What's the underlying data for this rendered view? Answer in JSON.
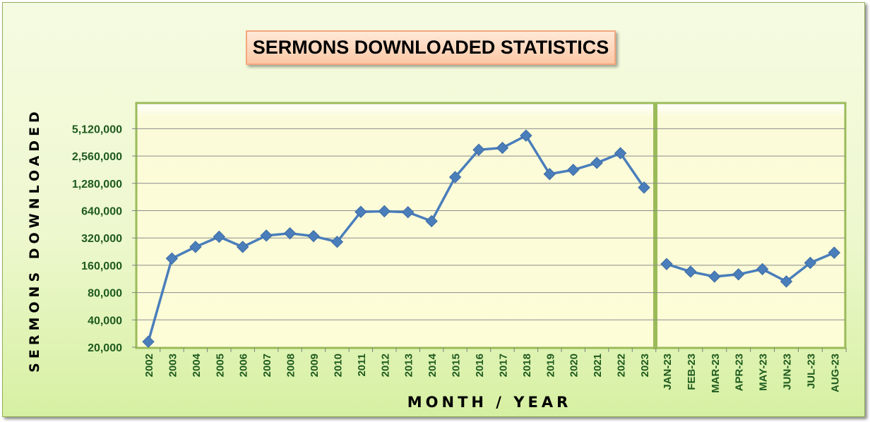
{
  "chart_data": {
    "type": "line",
    "title": "SERMONS DOWNLOADED STATISTICS",
    "xlabel": "MONTH / YEAR",
    "ylabel": "SERMONS DOWNLOADED",
    "y_scale": "log2",
    "ylim": [
      20000,
      7000000
    ],
    "y_ticks": [
      20000,
      40000,
      80000,
      160000,
      320000,
      640000,
      1280000,
      2560000,
      5120000
    ],
    "y_tick_labels": [
      "20,000",
      "40,000",
      "80,000",
      "160,000",
      "320,000",
      "640,000",
      "1,280,000",
      "2,560,000",
      "5,120,000"
    ],
    "grid": true,
    "legend": "none",
    "colors": {
      "line": "#4a7ebb",
      "marker": "#4a7ebb",
      "axis_text": "#1e5a1e",
      "separator": "#9bbb59",
      "plot_bg": "#fdfdd8"
    },
    "panels": [
      {
        "categories": [
          "2002",
          "2003",
          "2004",
          "2005",
          "2006",
          "2007",
          "2008",
          "2009",
          "2010",
          "2011",
          "2012",
          "2013",
          "2014",
          "2015",
          "2016",
          "2017",
          "2018",
          "2019",
          "2020",
          "2021",
          "2022",
          "2023"
        ],
        "values": [
          23000,
          190000,
          255000,
          330000,
          255000,
          340000,
          360000,
          335000,
          290000,
          620000,
          630000,
          615000,
          490000,
          1500000,
          3000000,
          3150000,
          4300000,
          1620000,
          1800000,
          2150000,
          2750000,
          1150000
        ]
      },
      {
        "categories": [
          "JAN-23",
          "FEB-23",
          "MAR-23",
          "APR-23",
          "MAY-23",
          "JUN-23",
          "JUL-23",
          "AUG-23"
        ],
        "values": [
          165000,
          136000,
          120000,
          127000,
          145000,
          106000,
          170000,
          220000
        ]
      }
    ]
  }
}
